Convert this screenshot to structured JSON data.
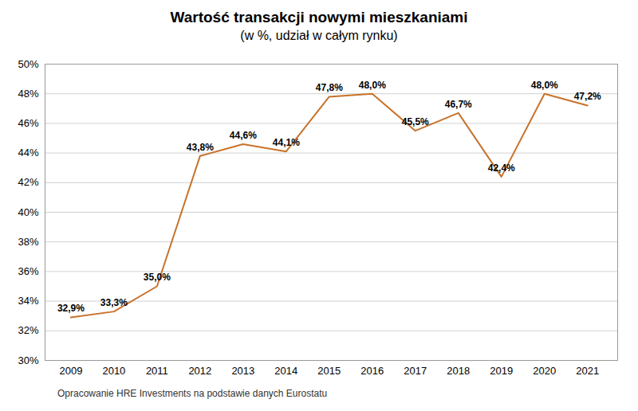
{
  "chart_data": {
    "type": "line",
    "title": "Wartość transakcji nowymi mieszkaniami",
    "subtitle": "(w %, udział w całym rynku)",
    "caption": "Opracowanie HRE Investments na podstawie danych Eurostatu",
    "x": [
      2009,
      2010,
      2011,
      2012,
      2013,
      2014,
      2015,
      2016,
      2017,
      2018,
      2019,
      2020,
      2021
    ],
    "values": [
      32.9,
      33.3,
      35.0,
      43.8,
      44.6,
      44.1,
      47.8,
      48.0,
      45.5,
      46.7,
      42.4,
      48.0,
      47.2
    ],
    "value_labels": [
      "32,9%",
      "33,3%",
      "35,0%",
      "43,8%",
      "44,6%",
      "44,1%",
      "47,8%",
      "48,0%",
      "45,5%",
      "46,7%",
      "42,4%",
      "48,0%",
      "47,2%"
    ],
    "data_labels": true,
    "color": "#C8722A",
    "xlim": [
      2008.4,
      2021.7
    ],
    "xticks": [
      2009,
      2010,
      2011,
      2012,
      2013,
      2014,
      2015,
      2016,
      2017,
      2018,
      2019,
      2020,
      2021
    ],
    "ylim": [
      30,
      50
    ],
    "yticks": [
      {
        "value": 30,
        "label": "30%"
      },
      {
        "value": 32,
        "label": "32%"
      },
      {
        "value": 34,
        "label": "34%"
      },
      {
        "value": 36,
        "label": "36%"
      },
      {
        "value": 38,
        "label": "38%"
      },
      {
        "value": 40,
        "label": "40%"
      },
      {
        "value": 42,
        "label": "42%"
      },
      {
        "value": 44,
        "label": "44%"
      },
      {
        "value": 46,
        "label": "46%"
      },
      {
        "value": 48,
        "label": "48%"
      },
      {
        "value": 50,
        "label": "50%"
      }
    ],
    "grid": "y"
  }
}
